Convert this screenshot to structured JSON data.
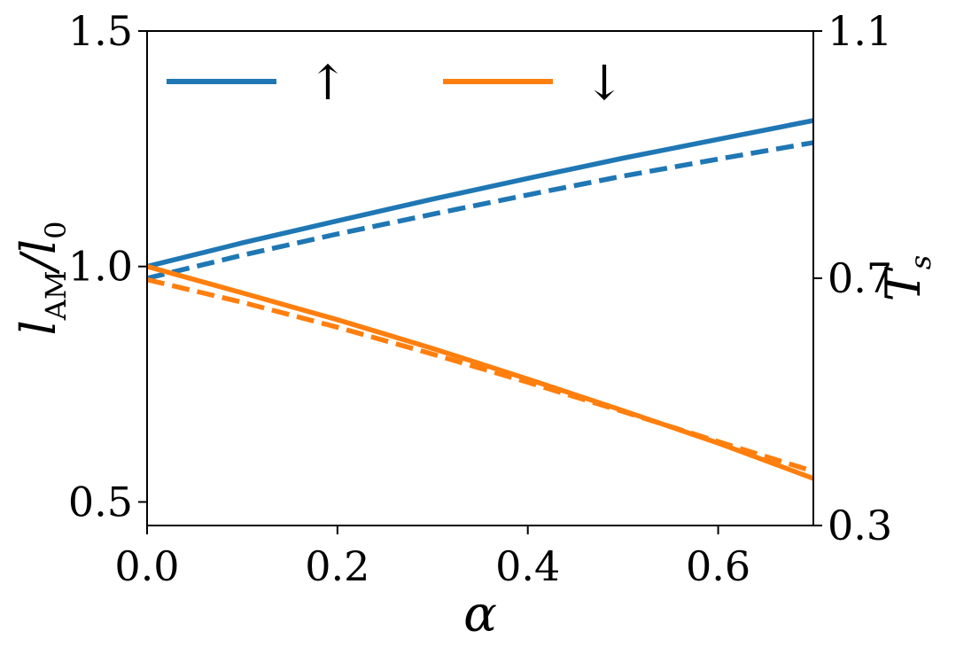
{
  "chart_data": {
    "type": "line",
    "xlabel": "α",
    "ylabel_left": {
      "main": "l",
      "sub": "AM",
      "rest": "/l",
      "sub2": "0"
    },
    "ylabel_right": {
      "main": "T",
      "sub": "s"
    },
    "xlim": [
      0,
      0.7
    ],
    "ylim_left": [
      0.45,
      1.5
    ],
    "ylim_right": [
      0.3,
      1.1
    ],
    "x_ticks": [
      0.0,
      0.2,
      0.4,
      0.6
    ],
    "x_tick_labels": [
      "0.0",
      "0.2",
      "0.4",
      "0.6"
    ],
    "y_left_ticks": [
      0.5,
      1.0,
      1.5
    ],
    "y_left_tick_labels": [
      "0.5",
      "1.0",
      "1.5"
    ],
    "y_right_ticks": [
      0.3,
      0.7,
      1.1
    ],
    "y_right_tick_labels": [
      "0.3",
      "0.7",
      "1.1"
    ],
    "grid": false,
    "legend_position": "top",
    "legend": [
      {
        "label": "↑",
        "color": "#1f77b4"
      },
      {
        "label": "↓",
        "color": "#ff7f0e"
      }
    ],
    "series": [
      {
        "color": "#1f77b4",
        "style": "solid",
        "axis": "left",
        "x": [
          0,
          0.1,
          0.2,
          0.3,
          0.4,
          0.5,
          0.6,
          0.7
        ],
        "y": [
          1.0,
          1.05,
          1.097,
          1.143,
          1.187,
          1.23,
          1.27,
          1.31
        ]
      },
      {
        "color": "#1f77b4",
        "style": "dashed",
        "axis": "left",
        "x": [
          0,
          0.1,
          0.2,
          0.3,
          0.4,
          0.5,
          0.6,
          0.7
        ],
        "y": [
          0.975,
          1.024,
          1.069,
          1.111,
          1.152,
          1.192,
          1.228,
          1.263
        ]
      },
      {
        "color": "#ff7f0e",
        "style": "solid",
        "axis": "left",
        "x": [
          0,
          0.1,
          0.2,
          0.3,
          0.4,
          0.5,
          0.6,
          0.7
        ],
        "y": [
          1.0,
          0.944,
          0.887,
          0.826,
          0.761,
          0.694,
          0.625,
          0.55
        ]
      },
      {
        "color": "#ff7f0e",
        "style": "dashed",
        "axis": "left",
        "x": [
          0,
          0.1,
          0.2,
          0.3,
          0.4,
          0.5,
          0.6,
          0.7
        ],
        "y": [
          0.972,
          0.924,
          0.871,
          0.814,
          0.754,
          0.692,
          0.628,
          0.565
        ]
      }
    ]
  }
}
